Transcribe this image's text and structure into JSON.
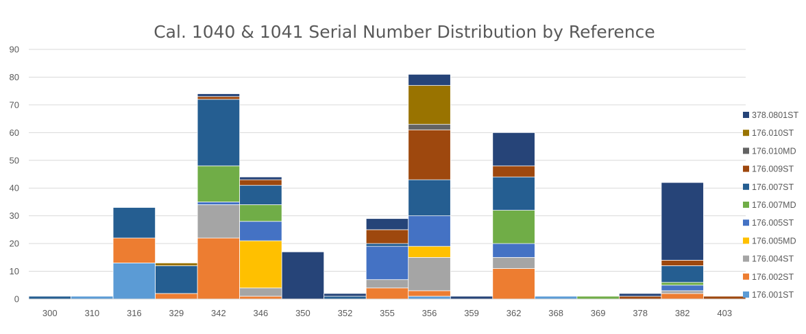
{
  "chart_data": {
    "type": "bar",
    "stacked": true,
    "title": "Cal. 1040 & 1041 Serial Number Distribution by Reference",
    "xlabel": "",
    "ylabel": "",
    "ylim": [
      0,
      90
    ],
    "yticks": [
      0,
      10,
      20,
      30,
      40,
      50,
      60,
      70,
      80,
      90
    ],
    "grid": true,
    "legend_position": "right",
    "categories": [
      "300",
      "310",
      "316",
      "329",
      "342",
      "346",
      "350",
      "352",
      "355",
      "356",
      "359",
      "362",
      "368",
      "369",
      "378",
      "382",
      "403"
    ],
    "series": [
      {
        "name": "176.001ST",
        "color": "#5B9BD5",
        "values": [
          0,
          1,
          13,
          0,
          0,
          0,
          0,
          0,
          0,
          1,
          0,
          0,
          1,
          0,
          0,
          0,
          0
        ]
      },
      {
        "name": "176.002ST",
        "color": "#ED7D31",
        "values": [
          0,
          0,
          9,
          2,
          22,
          1,
          0,
          0,
          4,
          2,
          0,
          11,
          0,
          0,
          0,
          2,
          0
        ]
      },
      {
        "name": "176.004ST",
        "color": "#A5A5A5",
        "values": [
          0,
          0,
          0,
          0,
          12,
          3,
          0,
          0,
          3,
          12,
          0,
          4,
          0,
          0,
          0,
          1,
          0
        ]
      },
      {
        "name": "176.005MD",
        "color": "#FFC000",
        "values": [
          0,
          0,
          0,
          0,
          0,
          17,
          0,
          0,
          0,
          4,
          0,
          0,
          0,
          0,
          0,
          0,
          0
        ]
      },
      {
        "name": "176.005ST",
        "color": "#4472C4",
        "values": [
          0,
          0,
          0,
          0,
          1,
          7,
          0,
          0,
          12,
          11,
          0,
          5,
          0,
          0,
          0,
          2,
          0
        ]
      },
      {
        "name": "176.007MD",
        "color": "#70AD47",
        "values": [
          0,
          0,
          0,
          0,
          13,
          6,
          0,
          0,
          0,
          0,
          0,
          12,
          0,
          1,
          0,
          1,
          0
        ]
      },
      {
        "name": "176.007ST",
        "color": "#255E91",
        "values": [
          1,
          0,
          11,
          10,
          24,
          7,
          0,
          1,
          1,
          13,
          0,
          12,
          0,
          0,
          0,
          6,
          0
        ]
      },
      {
        "name": "176.009ST",
        "color": "#9E480E",
        "values": [
          0,
          0,
          0,
          0,
          1,
          2,
          0,
          0,
          5,
          18,
          0,
          4,
          0,
          0,
          1,
          2,
          1
        ]
      },
      {
        "name": "176.010MD",
        "color": "#636363",
        "values": [
          0,
          0,
          0,
          0,
          0,
          0,
          0,
          0,
          0,
          2,
          0,
          0,
          0,
          0,
          0,
          0,
          0
        ]
      },
      {
        "name": "176.010ST",
        "color": "#997300",
        "values": [
          0,
          0,
          0,
          1,
          0,
          0,
          0,
          0,
          0,
          14,
          0,
          0,
          0,
          0,
          0,
          0,
          0
        ]
      },
      {
        "name": "378.0801ST",
        "color": "#264478",
        "values": [
          0,
          0,
          0,
          0,
          1,
          1,
          17,
          1,
          4,
          4,
          1,
          12,
          0,
          0,
          1,
          28,
          0
        ]
      }
    ]
  }
}
